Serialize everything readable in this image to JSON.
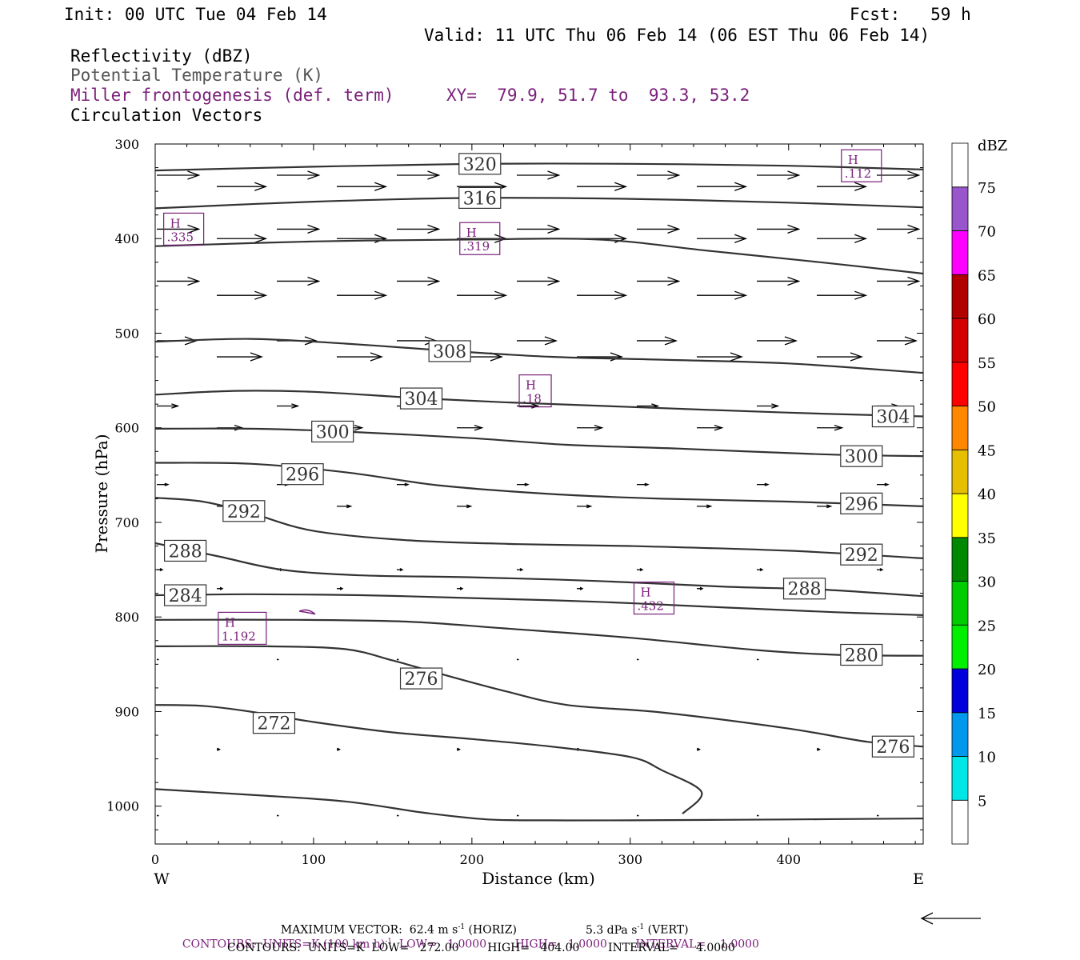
{
  "header": {
    "init": "Init: 00 UTC Tue 04 Feb 14",
    "fcst": "Fcst:   59 h",
    "valid": "Valid: 11 UTC Thu 06 Feb 14 (06 EST Thu 06 Feb 14)",
    "field1": "Reflectivity (dBZ)",
    "field2": "Potential Temperature (K)",
    "field3": "Miller frontogenesis (def. term)",
    "xy": "XY=  79.9, 51.7 to  93.3, 53.2",
    "field4": "Circulation Vectors"
  },
  "colors": {
    "theta": "#333333",
    "frontogenesis": "#7a1f7a",
    "vector": "#000000"
  },
  "chart_data": {
    "type": "cross-section",
    "xlabel": "Distance (km)",
    "ylabel": "Pressure (hPa)",
    "xlim": [
      0,
      485
    ],
    "ylim": [
      1040,
      300
    ],
    "x_ticks": [
      0,
      100,
      200,
      300,
      400
    ],
    "y_ticks": [
      300,
      400,
      500,
      600,
      700,
      800,
      900,
      1000
    ],
    "x_end_labels": {
      "left": "W",
      "right": "E"
    },
    "theta_contours": [
      {
        "level": 320,
        "points": [
          [
            0,
            328
          ],
          [
            100,
            324
          ],
          [
            200,
            321
          ],
          [
            300,
            321
          ],
          [
            400,
            323
          ],
          [
            485,
            327
          ]
        ]
      },
      {
        "level": 316,
        "points": [
          [
            0,
            368
          ],
          [
            100,
            361
          ],
          [
            200,
            357
          ],
          [
            300,
            358
          ],
          [
            400,
            362
          ],
          [
            485,
            367
          ]
        ]
      },
      {
        "level": 312,
        "points": [
          [
            0,
            408
          ],
          [
            100,
            403
          ],
          [
            200,
            401
          ],
          [
            280,
            401
          ],
          [
            350,
            413
          ],
          [
            420,
            425
          ],
          [
            485,
            437
          ]
        ]
      },
      {
        "level": 308,
        "points": [
          [
            0,
            509
          ],
          [
            60,
            506
          ],
          [
            120,
            511
          ],
          [
            180,
            518
          ],
          [
            250,
            525
          ],
          [
            320,
            528
          ],
          [
            400,
            532
          ],
          [
            485,
            542
          ]
        ]
      },
      {
        "level": 304,
        "points": [
          [
            0,
            565
          ],
          [
            50,
            561
          ],
          [
            100,
            562
          ],
          [
            160,
            568
          ],
          [
            220,
            573
          ],
          [
            300,
            578
          ],
          [
            400,
            584
          ],
          [
            485,
            588
          ]
        ]
      },
      {
        "level": 300,
        "points": [
          [
            0,
            601
          ],
          [
            60,
            601
          ],
          [
            120,
            604
          ],
          [
            200,
            611
          ],
          [
            260,
            618
          ],
          [
            330,
            622
          ],
          [
            420,
            628
          ],
          [
            485,
            630
          ]
        ]
      },
      {
        "level": 296,
        "points": [
          [
            0,
            637
          ],
          [
            60,
            638
          ],
          [
            120,
            647
          ],
          [
            180,
            661
          ],
          [
            250,
            670
          ],
          [
            320,
            675
          ],
          [
            400,
            678
          ],
          [
            485,
            683
          ]
        ]
      },
      {
        "level": 292,
        "points": [
          [
            0,
            674
          ],
          [
            30,
            678
          ],
          [
            60,
            690
          ],
          [
            100,
            709
          ],
          [
            160,
            719
          ],
          [
            230,
            723
          ],
          [
            300,
            725
          ],
          [
            400,
            730
          ],
          [
            485,
            738
          ]
        ]
      },
      {
        "level": 288,
        "points": [
          [
            0,
            722
          ],
          [
            40,
            736
          ],
          [
            80,
            750
          ],
          [
            130,
            756
          ],
          [
            200,
            758
          ],
          [
            280,
            762
          ],
          [
            360,
            768
          ],
          [
            420,
            771
          ],
          [
            485,
            778
          ]
        ]
      },
      {
        "level": 284,
        "points": [
          [
            0,
            777
          ],
          [
            60,
            776
          ],
          [
            130,
            777
          ],
          [
            200,
            780
          ],
          [
            280,
            784
          ],
          [
            360,
            790
          ],
          [
            430,
            795
          ],
          [
            485,
            798
          ]
        ]
      },
      {
        "level": 280,
        "points": [
          [
            0,
            803
          ],
          [
            90,
            803
          ],
          [
            160,
            805
          ],
          [
            220,
            812
          ],
          [
            300,
            822
          ],
          [
            380,
            835
          ],
          [
            430,
            840
          ],
          [
            485,
            841
          ]
        ]
      },
      {
        "level": 276,
        "points": [
          [
            0,
            831
          ],
          [
            70,
            831
          ],
          [
            120,
            834
          ],
          [
            150,
            846
          ],
          [
            180,
            860
          ],
          [
            220,
            878
          ],
          [
            260,
            893
          ],
          [
            320,
            901
          ],
          [
            400,
            918
          ],
          [
            450,
            932
          ],
          [
            485,
            937
          ]
        ]
      },
      {
        "level": 272,
        "points": [
          [
            0,
            893
          ],
          [
            30,
            894
          ],
          [
            60,
            900
          ],
          [
            100,
            911
          ],
          [
            150,
            922
          ],
          [
            200,
            929
          ],
          [
            250,
            937
          ],
          [
            300,
            948
          ],
          [
            320,
            962
          ],
          [
            345,
            985
          ],
          [
            333,
            1008
          ]
        ]
      },
      {
        "level": 268,
        "points": [
          [
            0,
            982
          ],
          [
            60,
            988
          ],
          [
            120,
            995
          ],
          [
            170,
            1007
          ],
          [
            210,
            1014
          ],
          [
            250,
            1015
          ],
          [
            300,
            1015
          ],
          [
            400,
            1014
          ],
          [
            485,
            1013
          ]
        ]
      }
    ],
    "contour_labels": [
      {
        "text": "320",
        "x": 205,
        "p": 321
      },
      {
        "text": "316",
        "x": 205,
        "p": 357
      },
      {
        "text": "308",
        "x": 186,
        "p": 519
      },
      {
        "text": "304",
        "x": 168,
        "p": 569
      },
      {
        "text": "304",
        "x": 466,
        "p": 588
      },
      {
        "text": "300",
        "x": 112,
        "p": 604
      },
      {
        "text": "300",
        "x": 446,
        "p": 630
      },
      {
        "text": "296",
        "x": 93,
        "p": 649
      },
      {
        "text": "296",
        "x": 446,
        "p": 680
      },
      {
        "text": "292",
        "x": 56,
        "p": 688
      },
      {
        "text": "292",
        "x": 446,
        "p": 734
      },
      {
        "text": "288",
        "x": 19,
        "p": 730
      },
      {
        "text": "288",
        "x": 410,
        "p": 770
      },
      {
        "text": "284",
        "x": 19,
        "p": 777
      },
      {
        "text": "280",
        "x": 446,
        "p": 840
      },
      {
        "text": "276",
        "x": 168,
        "p": 865
      },
      {
        "text": "276",
        "x": 466,
        "p": 937
      },
      {
        "text": "272",
        "x": 75,
        "p": 912
      }
    ],
    "frontogenesis_maxima": [
      {
        "label": "H",
        "value": ".335",
        "x": 18,
        "p": 390
      },
      {
        "label": "H",
        "value": ".319",
        "x": 205,
        "p": 400
      },
      {
        "label": "H",
        "value": ".112",
        "x": 446,
        "p": 323
      },
      {
        "label": "H",
        "value": ".18",
        "x": 240,
        "p": 561
      },
      {
        "label": "H",
        "value": ".432",
        "x": 315,
        "p": 780
      },
      {
        "label": "H",
        "value": "1.192",
        "x": 55,
        "p": 812
      }
    ],
    "colorbar": {
      "unit": "dBZ",
      "levels": [
        5,
        10,
        15,
        20,
        25,
        30,
        35,
        40,
        45,
        50,
        55,
        60,
        65,
        70,
        75
      ],
      "colors": [
        "#ffffff",
        "#00e5e5",
        "#0099ee",
        "#0000dd",
        "#00ee00",
        "#00cc00",
        "#008800",
        "#ffff00",
        "#e5bf00",
        "#ff8800",
        "#ff0000",
        "#d40000",
        "#b00000",
        "#ff00ff",
        "#9955cc",
        "#ffffff"
      ]
    },
    "vector_rows": [
      {
        "p": 333,
        "u": 30,
        "w": 0
      },
      {
        "p": 345,
        "u": 35,
        "w": 0
      },
      {
        "p": 390,
        "u": 30,
        "w": 0
      },
      {
        "p": 400,
        "u": 35,
        "w": 0
      },
      {
        "p": 445,
        "u": 30,
        "w": 0
      },
      {
        "p": 460,
        "u": 35,
        "w": 0
      },
      {
        "p": 508,
        "u": 28,
        "w": 0
      },
      {
        "p": 525,
        "u": 32,
        "w": 0
      },
      {
        "p": 577,
        "u": 15,
        "w": 0
      },
      {
        "p": 600,
        "u": 18,
        "w": 0
      },
      {
        "p": 660,
        "u": 8,
        "w": 0
      },
      {
        "p": 683,
        "u": 10,
        "w": 0
      },
      {
        "p": 750,
        "u": 4,
        "w": 0
      },
      {
        "p": 770,
        "u": 4,
        "w": 0
      },
      {
        "p": 845,
        "u": 0.5,
        "w": 0
      },
      {
        "p": 940,
        "u": 2,
        "w": 0
      },
      {
        "p": 1010,
        "u": 1,
        "w": 0
      }
    ],
    "footer": {
      "line1a": "MAXIMUM VECTOR:  62.4 m s",
      "line1b": " (HORIZ)",
      "line1c": "5.3 dPa s",
      "line1d": " (VERT)",
      "line2a": "CONTOURS:  UNITS=K (100 km h)",
      "line2b": "  LOW=   1.0000        HIGH=   1.0000        INTERVAL=    1.0000",
      "line3": "CONTOURS:  UNITS=K  LOW=   272.00        HIGH=   404.00        INTERVAL=     4.0000",
      "sup1": "-1",
      "sup2": "-1",
      "sup3": "-1"
    }
  }
}
